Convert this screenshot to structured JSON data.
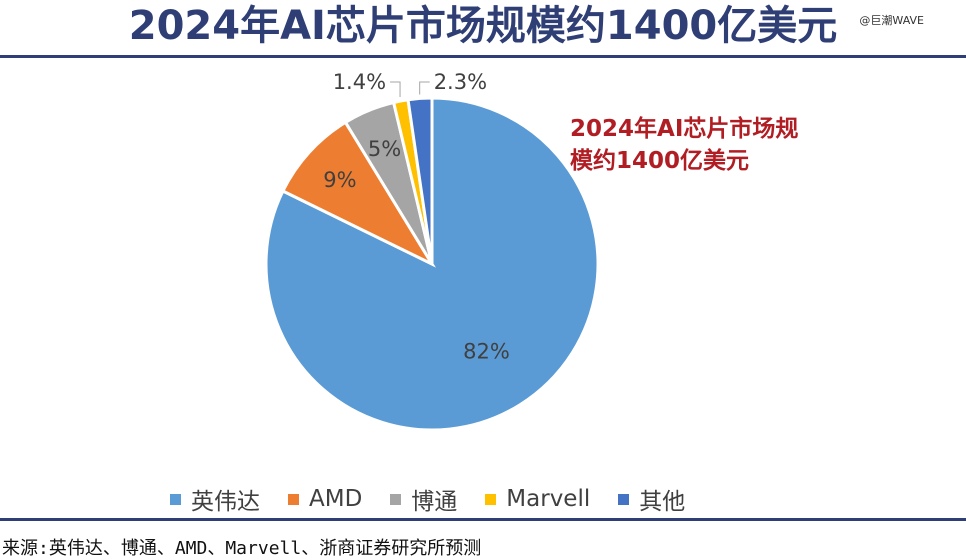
{
  "title": "2024年AI芯片市场规模约1400亿美元",
  "watermark": "@巨潮WAVE",
  "annotation": {
    "line1": "2024年AI芯片市场规",
    "line2": "模约1400亿美元"
  },
  "source": "来源:英伟达、博通、AMD、Marvell、浙商证券研究所预测",
  "chart_data": {
    "type": "pie",
    "categories": [
      "英伟达",
      "AMD",
      "博通",
      "Marvell",
      "其他"
    ],
    "values": [
      82,
      9,
      5,
      1.4,
      2.3
    ],
    "data_labels": [
      "82%",
      "9%",
      "5%",
      "1.4%",
      "2.3%"
    ],
    "colors": [
      "#5b9bd5",
      "#ed7d31",
      "#a5a5a5",
      "#ffc000",
      "#4472c4"
    ],
    "start": "12 o'clock",
    "direction": "clockwise",
    "legend": "bottom"
  }
}
